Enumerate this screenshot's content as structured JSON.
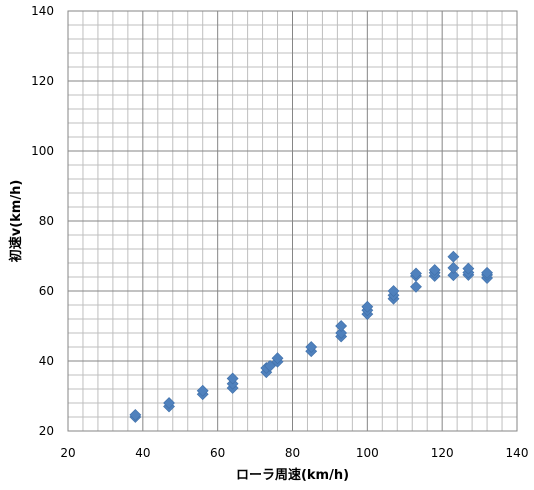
{
  "chart_data": {
    "type": "scatter",
    "title": "",
    "xlabel": "ローラ周速(km/h)",
    "ylabel": "初速v(km/h)",
    "xlim": [
      20,
      140
    ],
    "ylim": [
      20,
      140
    ],
    "x_major_ticks": [
      20,
      40,
      60,
      80,
      100,
      120,
      140
    ],
    "y_major_ticks": [
      20,
      40,
      60,
      80,
      100,
      120,
      140
    ],
    "x_tick_labels": [
      "20",
      "40",
      "60",
      "80",
      "100",
      "120",
      "140"
    ],
    "y_tick_labels": [
      "20",
      "40",
      "60",
      "80",
      "100",
      "120",
      "140"
    ],
    "x_minor_step": 4,
    "y_minor_step": 4,
    "grid": true,
    "legend": "none",
    "marker": "diamond",
    "series": [
      {
        "color": "#4f81bd",
        "x": [
          38,
          38,
          47,
          47,
          56,
          56,
          64,
          64,
          64,
          73,
          73,
          74,
          76,
          76,
          85,
          85,
          93,
          93,
          93,
          100,
          100,
          100,
          107,
          107,
          107,
          113,
          113,
          113,
          118,
          118,
          118,
          123,
          123,
          123,
          127,
          127,
          127,
          132,
          132,
          132
        ],
        "y": [
          24,
          24.6,
          27,
          28,
          30.5,
          31.5,
          32.3,
          33.5,
          35,
          36.8,
          38,
          38.6,
          39.8,
          40.8,
          42.8,
          44,
          47,
          48,
          50,
          53.4,
          54.5,
          55.5,
          57.8,
          58.8,
          60,
          61.2,
          64.3,
          65,
          64.3,
          65.2,
          66,
          64.5,
          66.6,
          69.8,
          64.6,
          65.3,
          66.4,
          63.7,
          64.6,
          65.2
        ]
      }
    ]
  }
}
